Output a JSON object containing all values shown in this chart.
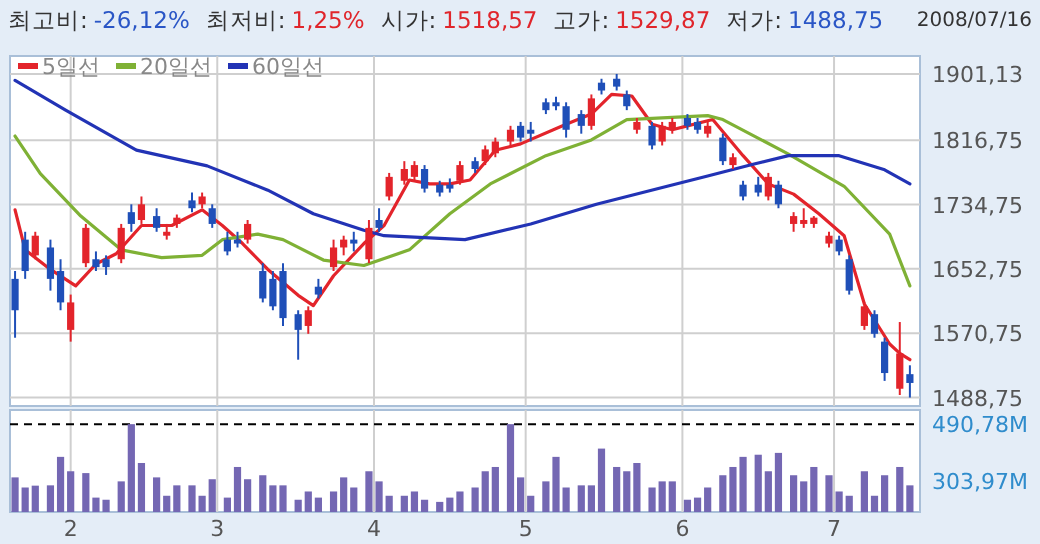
{
  "chart_data": [
    {
      "type": "candlestick",
      "annotations": [
        "최고비:",
        "-26,12%",
        "최저비:",
        "1,25%",
        "시가:",
        "1518,57",
        "고가:",
        "1529,87",
        "저가:",
        "1488,75",
        "2008/07/16"
      ],
      "x": [
        "2008-01-21",
        "2008-01-23",
        "2008-01-25",
        "2008-01-28",
        "2008-01-30",
        "2008-02-01",
        "2008-02-04",
        "2008-02-06",
        "2008-02-08",
        "2008-02-11",
        "2008-02-13",
        "2008-02-15",
        "2008-02-18",
        "2008-02-20",
        "2008-02-22",
        "2008-02-25",
        "2008-02-27",
        "2008-02-29",
        "2008-03-03",
        "2008-03-05",
        "2008-03-07",
        "2008-03-10",
        "2008-03-12",
        "2008-03-14",
        "2008-03-17",
        "2008-03-19",
        "2008-03-21",
        "2008-03-24",
        "2008-03-26",
        "2008-03-28",
        "2008-03-31",
        "2008-04-02",
        "2008-04-04",
        "2008-04-07",
        "2008-04-09",
        "2008-04-11",
        "2008-04-14",
        "2008-04-16",
        "2008-04-18",
        "2008-04-21",
        "2008-04-23",
        "2008-04-25",
        "2008-04-28",
        "2008-04-30",
        "2008-05-02",
        "2008-05-05",
        "2008-05-07",
        "2008-05-09",
        "2008-05-12",
        "2008-05-14",
        "2008-05-16",
        "2008-05-19",
        "2008-05-21",
        "2008-05-23",
        "2008-05-26",
        "2008-05-28",
        "2008-05-30",
        "2008-06-02",
        "2008-06-04",
        "2008-06-06",
        "2008-06-09",
        "2008-06-11",
        "2008-06-13",
        "2008-06-16",
        "2008-06-18",
        "2008-06-20",
        "2008-06-23",
        "2008-06-25",
        "2008-06-27",
        "2008-06-30",
        "2008-07-02",
        "2008-07-04",
        "2008-07-07",
        "2008-07-09",
        "2008-07-11",
        "2008-07-14",
        "2008-07-16"
      ],
      "ohlc": [
        [
          1640,
          1650,
          1565,
          1600
        ],
        [
          1690,
          1700,
          1640,
          1650
        ],
        [
          1670,
          1700,
          1665,
          1695
        ],
        [
          1680,
          1690,
          1625,
          1640
        ],
        [
          1650,
          1665,
          1600,
          1610
        ],
        [
          1575,
          1620,
          1560,
          1610
        ],
        [
          1660,
          1710,
          1655,
          1705
        ],
        [
          1665,
          1675,
          1650,
          1655
        ],
        [
          1665,
          1670,
          1645,
          1655
        ],
        [
          1665,
          1710,
          1660,
          1705
        ],
        [
          1725,
          1735,
          1700,
          1710
        ],
        [
          1715,
          1745,
          1710,
          1735
        ],
        [
          1720,
          1730,
          1700,
          1705
        ],
        [
          1695,
          1710,
          1690,
          1700
        ],
        [
          1710,
          1722,
          1705,
          1718
        ],
        [
          1740,
          1750,
          1725,
          1730
        ],
        [
          1735,
          1750,
          1730,
          1745
        ],
        [
          1730,
          1735,
          1705,
          1710
        ],
        [
          1690,
          1700,
          1670,
          1675
        ],
        [
          1690,
          1700,
          1680,
          1685
        ],
        [
          1690,
          1715,
          1685,
          1710
        ],
        [
          1650,
          1660,
          1610,
          1615
        ],
        [
          1640,
          1650,
          1600,
          1605
        ],
        [
          1650,
          1660,
          1580,
          1590
        ],
        [
          1595,
          1600,
          1537,
          1575
        ],
        [
          1580,
          1605,
          1570,
          1600
        ],
        [
          1630,
          1640,
          1615,
          1620
        ],
        [
          1655,
          1690,
          1650,
          1680
        ],
        [
          1680,
          1695,
          1670,
          1690
        ],
        [
          1690,
          1700,
          1675,
          1685
        ],
        [
          1665,
          1715,
          1660,
          1705
        ],
        [
          1715,
          1730,
          1700,
          1705
        ],
        [
          1745,
          1775,
          1740,
          1770
        ],
        [
          1765,
          1790,
          1760,
          1780
        ],
        [
          1770,
          1790,
          1765,
          1785
        ],
        [
          1780,
          1785,
          1750,
          1755
        ],
        [
          1760,
          1765,
          1745,
          1750
        ],
        [
          1760,
          1768,
          1750,
          1755
        ],
        [
          1765,
          1790,
          1760,
          1785
        ],
        [
          1790,
          1795,
          1775,
          1780
        ],
        [
          1790,
          1810,
          1785,
          1805
        ],
        [
          1800,
          1820,
          1795,
          1815
        ],
        [
          1815,
          1835,
          1810,
          1830
        ],
        [
          1835,
          1840,
          1815,
          1820
        ],
        [
          1830,
          1840,
          1815,
          1825
        ],
        [
          1865,
          1870,
          1850,
          1855
        ],
        [
          1865,
          1872,
          1855,
          1860
        ],
        [
          1860,
          1865,
          1820,
          1830
        ],
        [
          1850,
          1855,
          1825,
          1835
        ],
        [
          1835,
          1875,
          1830,
          1870
        ],
        [
          1890,
          1895,
          1875,
          1880
        ],
        [
          1895,
          1901.13,
          1880,
          1885
        ],
        [
          1875,
          1880,
          1855,
          1860
        ],
        [
          1830,
          1845,
          1825,
          1840
        ],
        [
          1835,
          1840,
          1805,
          1810
        ],
        [
          1815,
          1840,
          1810,
          1835
        ],
        [
          1830,
          1845,
          1825,
          1840
        ],
        [
          1845,
          1850,
          1830,
          1835
        ],
        [
          1840,
          1845,
          1825,
          1830
        ],
        [
          1825,
          1840,
          1820,
          1835
        ],
        [
          1820,
          1825,
          1785,
          1790
        ],
        [
          1785,
          1800,
          1780,
          1795
        ],
        [
          1760,
          1765,
          1740,
          1745
        ],
        [
          1760,
          1770,
          1745,
          1750
        ],
        [
          1745,
          1775,
          1740,
          1770
        ],
        [
          1760,
          1765,
          1730,
          1735
        ],
        [
          1710,
          1725,
          1700,
          1720
        ],
        [
          1710,
          1730,
          1705,
          1715
        ],
        [
          1710,
          1720,
          1705,
          1718
        ],
        [
          1685,
          1700,
          1680,
          1695
        ],
        [
          1690,
          1695,
          1670,
          1675
        ],
        [
          1665,
          1670,
          1620,
          1625
        ],
        [
          1580,
          1610,
          1575,
          1605
        ],
        [
          1595,
          1600,
          1565,
          1570
        ],
        [
          1560,
          1565,
          1510,
          1520
        ],
        [
          1500,
          1585,
          1492,
          1545
        ],
        [
          1518.57,
          1529.87,
          1488.75,
          1507.36
        ]
      ],
      "colors": [
        "#1f4fb8",
        "#1f4fb8",
        "#e3242b",
        "#1f4fb8",
        "#1f4fb8",
        "#e3242b",
        "#e3242b",
        "#1f4fb8",
        "#1f4fb8",
        "#e3242b",
        "#1f4fb8",
        "#e3242b",
        "#1f4fb8",
        "#e3242b",
        "#e3242b",
        "#1f4fb8",
        "#e3242b",
        "#1f4fb8",
        "#1f4fb8",
        "#1f4fb8",
        "#e3242b",
        "#1f4fb8",
        "#1f4fb8",
        "#1f4fb8",
        "#1f4fb8",
        "#e3242b",
        "#1f4fb8",
        "#e3242b",
        "#e3242b",
        "#1f4fb8",
        "#e3242b",
        "#1f4fb8",
        "#e3242b",
        "#e3242b",
        "#e3242b",
        "#1f4fb8",
        "#1f4fb8",
        "#1f4fb8",
        "#e3242b",
        "#1f4fb8",
        "#e3242b",
        "#e3242b",
        "#e3242b",
        "#1f4fb8",
        "#1f4fb8",
        "#1f4fb8",
        "#1f4fb8",
        "#1f4fb8",
        "#1f4fb8",
        "#e3242b",
        "#1f4fb8",
        "#1f4fb8",
        "#1f4fb8",
        "#e3242b",
        "#1f4fb8",
        "#e3242b",
        "#e3242b",
        "#1f4fb8",
        "#1f4fb8",
        "#e3242b",
        "#1f4fb8",
        "#e3242b",
        "#1f4fb8",
        "#1f4fb8",
        "#e3242b",
        "#1f4fb8",
        "#e3242b",
        "#e3242b",
        "#e3242b",
        "#e3242b",
        "#1f4fb8",
        "#1f4fb8",
        "#e3242b",
        "#1f4fb8",
        "#1f4fb8",
        "#e3242b",
        "#1f4fb8"
      ],
      "series": [
        {
          "name": "5일선",
          "type": "line",
          "color": "#e3242b",
          "x": [
            "2008-01-21",
            "2008-01-23",
            "2008-01-28",
            "2008-02-02",
            "2008-02-06",
            "2008-02-10",
            "2008-02-15",
            "2008-02-21",
            "2008-02-27",
            "2008-03-02",
            "2008-03-06",
            "2008-03-11",
            "2008-03-17",
            "2008-03-20",
            "2008-03-24",
            "2008-03-30",
            "2008-04-03",
            "2008-04-08",
            "2008-04-12",
            "2008-04-16",
            "2008-04-20",
            "2008-04-25",
            "2008-04-30",
            "2008-05-09",
            "2008-05-14",
            "2008-05-18",
            "2008-05-22",
            "2008-05-26",
            "2008-05-30",
            "2008-06-02",
            "2008-06-07",
            "2008-06-13",
            "2008-06-18",
            "2008-06-23",
            "2008-06-28",
            "2008-07-03",
            "2008-07-07",
            "2008-07-12",
            "2008-07-14",
            "2008-07-16"
          ],
          "values": [
            1728,
            1677,
            1652,
            1631,
            1659,
            1672,
            1708,
            1708,
            1728,
            1708,
            1685,
            1652,
            1619,
            1606,
            1644,
            1685,
            1708,
            1766,
            1761,
            1761,
            1766,
            1804,
            1812,
            1837,
            1850,
            1875,
            1873,
            1837,
            1830,
            1835,
            1843,
            1797,
            1761,
            1748,
            1723,
            1695,
            1608,
            1557,
            1545,
            1537
          ]
        },
        {
          "name": "20일선",
          "type": "line",
          "color": "#7fb135",
          "x": [
            "2008-01-21",
            "2008-01-26",
            "2008-02-03",
            "2008-02-11",
            "2008-02-19",
            "2008-02-27",
            "2008-03-02",
            "2008-03-09",
            "2008-03-14",
            "2008-03-22",
            "2008-03-30",
            "2008-04-08",
            "2008-04-16",
            "2008-04-24",
            "2008-05-05",
            "2008-05-14",
            "2008-05-21",
            "2008-06-06",
            "2008-06-09",
            "2008-06-22",
            "2008-07-03",
            "2008-07-12",
            "2008-07-16"
          ],
          "values": [
            1822,
            1774,
            1720,
            1677,
            1667,
            1670,
            1690,
            1697,
            1690,
            1664,
            1657,
            1677,
            1723,
            1761,
            1797,
            1817,
            1843,
            1848,
            1843,
            1799,
            1758,
            1697,
            1631
          ]
        },
        {
          "name": "60일선",
          "type": "line",
          "color": "#2233b5",
          "x": [
            "2008-01-21",
            "2008-01-31",
            "2008-02-14",
            "2008-02-28",
            "2008-03-11",
            "2008-03-20",
            "2008-03-30",
            "2008-04-03",
            "2008-04-19",
            "2008-05-02",
            "2008-05-15",
            "2008-05-29",
            "2008-06-06",
            "2008-06-15",
            "2008-06-22",
            "2008-07-02",
            "2008-07-11",
            "2008-07-16"
          ],
          "values": [
            1893,
            1855,
            1804,
            1784,
            1753,
            1723,
            1702,
            1695,
            1690,
            1710,
            1735,
            1758,
            1771,
            1786,
            1797,
            1797,
            1779,
            1761
          ]
        }
      ],
      "xlim": [
        "2008-01-20",
        "2008-07-18"
      ],
      "xticks": [
        {
          "value": "2008-02-01",
          "label": null
        },
        {
          "value": "2008-03-01",
          "label": null
        },
        {
          "value": "2008-04-01",
          "label": null
        },
        {
          "value": "2008-05-01",
          "label": null
        },
        {
          "value": "2008-06-01",
          "label": null
        },
        {
          "value": "2008-07-01",
          "label": null
        }
      ],
      "ylim": [
        1478,
        1924
      ],
      "yticks": [
        {
          "value": 1488.75,
          "label": "1488,75"
        },
        {
          "value": 1570.75,
          "label": "1570,75"
        },
        {
          "value": 1652.75,
          "label": "1652,75"
        },
        {
          "value": 1734.75,
          "label": "1734,75"
        },
        {
          "value": 1816.75,
          "label": "1816,75"
        },
        {
          "value": 1901.13,
          "label": "1901,13"
        }
      ],
      "grid": true,
      "legend": "top left",
      "tick_labels": "y"
    },
    {
      "type": "bar",
      "color": "#7467b3",
      "x": [
        "2008-01-21",
        "2008-01-23",
        "2008-01-25",
        "2008-01-28",
        "2008-01-30",
        "2008-02-01",
        "2008-02-04",
        "2008-02-06",
        "2008-02-08",
        "2008-02-11",
        "2008-02-13",
        "2008-02-15",
        "2008-02-18",
        "2008-02-20",
        "2008-02-22",
        "2008-02-25",
        "2008-02-27",
        "2008-02-29",
        "2008-03-03",
        "2008-03-05",
        "2008-03-07",
        "2008-03-10",
        "2008-03-12",
        "2008-03-14",
        "2008-03-17",
        "2008-03-19",
        "2008-03-21",
        "2008-03-24",
        "2008-03-26",
        "2008-03-28",
        "2008-03-31",
        "2008-04-02",
        "2008-04-04",
        "2008-04-07",
        "2008-04-09",
        "2008-04-11",
        "2008-04-14",
        "2008-04-16",
        "2008-04-18",
        "2008-04-21",
        "2008-04-23",
        "2008-04-25",
        "2008-04-28",
        "2008-04-30",
        "2008-05-02",
        "2008-05-05",
        "2008-05-07",
        "2008-05-09",
        "2008-05-12",
        "2008-05-14",
        "2008-05-16",
        "2008-05-19",
        "2008-05-21",
        "2008-05-23",
        "2008-05-26",
        "2008-05-28",
        "2008-05-30",
        "2008-06-02",
        "2008-06-04",
        "2008-06-06",
        "2008-06-09",
        "2008-06-11",
        "2008-06-13",
        "2008-06-16",
        "2008-06-18",
        "2008-06-20",
        "2008-06-23",
        "2008-06-25",
        "2008-06-27",
        "2008-06-30",
        "2008-07-02",
        "2008-07-04",
        "2008-07-07",
        "2008-07-09",
        "2008-07-11",
        "2008-07-14",
        "2008-07-16"
      ],
      "values": [
        317,
        284,
        290,
        291,
        384,
        337,
        331,
        251,
        244,
        304,
        490.78,
        364,
        317,
        257,
        291,
        291,
        257,
        311,
        251,
        351,
        311,
        324,
        291,
        291,
        244,
        271,
        251,
        271,
        317,
        284,
        337,
        304,
        257,
        257,
        271,
        244,
        237,
        251,
        271,
        284,
        337,
        351,
        490.78,
        317,
        257,
        304,
        384,
        284,
        291,
        291,
        411,
        351,
        337,
        364,
        284,
        304,
        304,
        244,
        251,
        284,
        324,
        351,
        384,
        391,
        337,
        397,
        324,
        304,
        351,
        324,
        271,
        257,
        337,
        257,
        324,
        351,
        291
      ],
      "xlim": [
        "2008-01-20",
        "2008-07-18"
      ],
      "xticks": [
        {
          "value": "2008-02-01",
          "label": "2"
        },
        {
          "value": "2008-03-01",
          "label": "3"
        },
        {
          "value": "2008-04-01",
          "label": "4"
        },
        {
          "value": "2008-05-01",
          "label": "5"
        },
        {
          "value": "2008-06-01",
          "label": "6"
        },
        {
          "value": "2008-07-01",
          "label": "7"
        }
      ],
      "ylim": [
        204,
        537
      ],
      "yticks": [
        {
          "value": 303.97,
          "label": "303,97M"
        },
        {
          "value": 490.78,
          "label": "490,78M"
        }
      ],
      "ref_lines": [
        {
          "axis": "y",
          "value": 490.78,
          "color": "#000000",
          "line_style": "dashed"
        }
      ],
      "grid": "x"
    }
  ]
}
